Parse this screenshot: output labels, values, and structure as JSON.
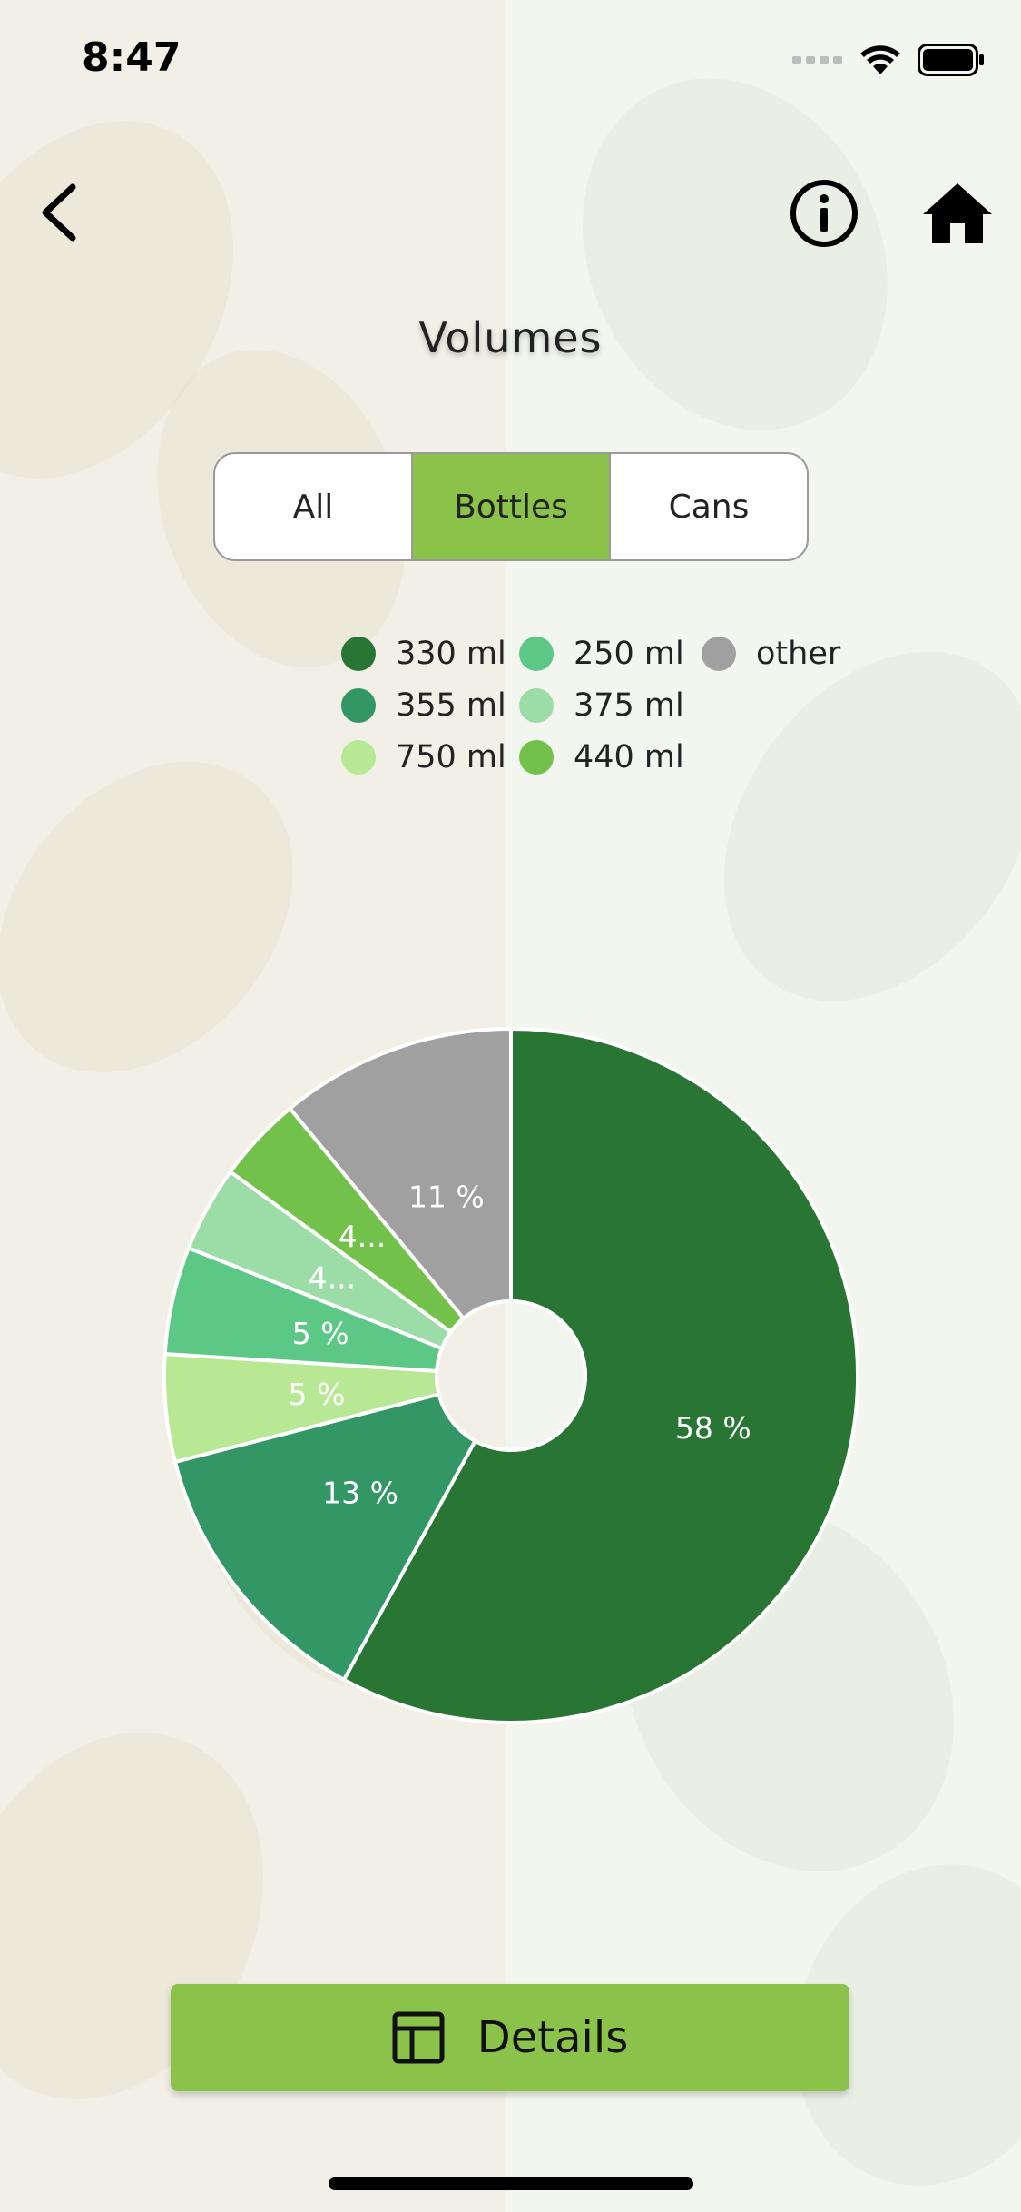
{
  "status_bar": {
    "time": "8:47"
  },
  "nav": {
    "back_icon": "chevron-left-icon",
    "info_icon": "info-circle-icon",
    "home_icon": "home-icon"
  },
  "page": {
    "title": "Volumes"
  },
  "tabs": [
    {
      "label": "All",
      "active": false
    },
    {
      "label": "Bottles",
      "active": true
    },
    {
      "label": "Cans",
      "active": false
    }
  ],
  "legend": [
    {
      "label": "330 ml",
      "color": "#287534"
    },
    {
      "label": "250 ml",
      "color": "#5dc886"
    },
    {
      "label": "other",
      "color": "#a0a0a0"
    },
    {
      "label": "355 ml",
      "color": "#339665"
    },
    {
      "label": "375 ml",
      "color": "#9cdca6"
    },
    {
      "label": "750 ml",
      "color": "#b8e894"
    },
    {
      "label": "440 ml",
      "color": "#72c14a"
    }
  ],
  "chart_data": {
    "type": "pie",
    "donut": true,
    "slices": [
      {
        "label": "330 ml",
        "value": 58,
        "display": "58 %",
        "color": "#287534"
      },
      {
        "label": "355 ml",
        "value": 13,
        "display": "13 %",
        "color": "#339665"
      },
      {
        "label": "750 ml",
        "value": 5,
        "display": "5 %",
        "color": "#b8e894"
      },
      {
        "label": "250 ml",
        "value": 5,
        "display": "5 %",
        "color": "#5dc886"
      },
      {
        "label": "375 ml",
        "value": 4,
        "display": "4...",
        "color": "#9cdca6"
      },
      {
        "label": "440 ml",
        "value": 4,
        "display": "4...",
        "color": "#72c14a"
      },
      {
        "label": "other",
        "value": 11,
        "display": "11 %",
        "color": "#a0a0a0"
      }
    ]
  },
  "footer": {
    "details_label": "Details",
    "details_icon": "table-icon"
  }
}
